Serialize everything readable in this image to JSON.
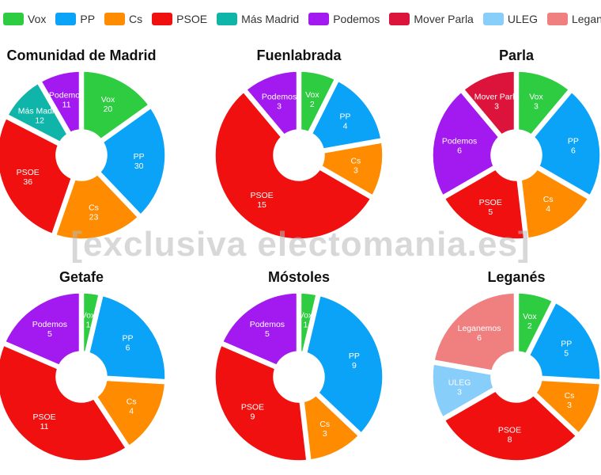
{
  "legend": [
    {
      "name": "Vox",
      "color": "#2ECC40"
    },
    {
      "name": "PP",
      "color": "#0AA3F7"
    },
    {
      "name": "Cs",
      "color": "#FF8C00"
    },
    {
      "name": "PSOE",
      "color": "#F01010"
    },
    {
      "name": "Más Madrid",
      "color": "#0FB5A8"
    },
    {
      "name": "Podemos",
      "color": "#A31AF0"
    },
    {
      "name": "Mover Parla",
      "color": "#DC143C"
    },
    {
      "name": "ULEG",
      "color": "#87CEFA"
    },
    {
      "name": "Leganemos",
      "color": "#F08080"
    }
  ],
  "watermark": "[exclusiva electomania.es]",
  "chart_data": [
    {
      "type": "pie",
      "title": "Comunidad de Madrid",
      "slices": [
        {
          "name": "Vox",
          "value": 20
        },
        {
          "name": "PP",
          "value": 30
        },
        {
          "name": "Cs",
          "value": 23
        },
        {
          "name": "PSOE",
          "value": 36
        },
        {
          "name": "Más Madrid",
          "value": 12
        },
        {
          "name": "Podemos",
          "value": 11
        }
      ]
    },
    {
      "type": "pie",
      "title": "Fuenlabrada",
      "slices": [
        {
          "name": "Vox",
          "value": 2
        },
        {
          "name": "PP",
          "value": 4
        },
        {
          "name": "Cs",
          "value": 3
        },
        {
          "name": "PSOE",
          "value": 15
        },
        {
          "name": "Podemos",
          "value": 3
        }
      ]
    },
    {
      "type": "pie",
      "title": "Parla",
      "slices": [
        {
          "name": "Vox",
          "value": 3
        },
        {
          "name": "PP",
          "value": 6
        },
        {
          "name": "Cs",
          "value": 4
        },
        {
          "name": "PSOE",
          "value": 5
        },
        {
          "name": "Podemos",
          "value": 6
        },
        {
          "name": "Mover Parla",
          "value": 3
        }
      ]
    },
    {
      "type": "pie",
      "title": "Getafe",
      "slices": [
        {
          "name": "Vox",
          "value": 1
        },
        {
          "name": "PP",
          "value": 6
        },
        {
          "name": "Cs",
          "value": 4
        },
        {
          "name": "PSOE",
          "value": 11
        },
        {
          "name": "Podemos",
          "value": 5
        }
      ]
    },
    {
      "type": "pie",
      "title": "Móstoles",
      "slices": [
        {
          "name": "Vox",
          "value": 1
        },
        {
          "name": "PP",
          "value": 9
        },
        {
          "name": "Cs",
          "value": 3
        },
        {
          "name": "PSOE",
          "value": 9
        },
        {
          "name": "Podemos",
          "value": 5
        }
      ]
    },
    {
      "type": "pie",
      "title": "Leganés",
      "slices": [
        {
          "name": "Vox",
          "value": 2
        },
        {
          "name": "PP",
          "value": 5
        },
        {
          "name": "Cs",
          "value": 3
        },
        {
          "name": "PSOE",
          "value": 8
        },
        {
          "name": "ULEG",
          "value": 3
        },
        {
          "name": "Leganemos",
          "value": 6
        }
      ]
    }
  ]
}
